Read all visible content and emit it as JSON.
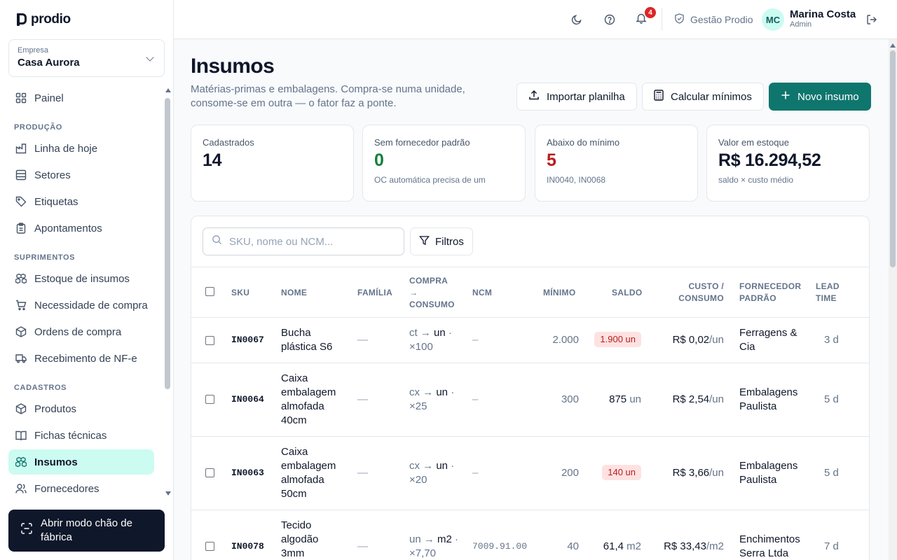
{
  "app": {
    "logo_text": "prodio"
  },
  "company": {
    "label": "Empresa",
    "value": "Casa Aurora"
  },
  "sidebar": {
    "items": [
      {
        "label": "Painel",
        "icon": "layout-grid-icon"
      },
      {
        "label": "Linha de hoje",
        "icon": "factory-icon"
      },
      {
        "label": "Setores",
        "icon": "rows-icon"
      },
      {
        "label": "Etiquetas",
        "icon": "tag-icon"
      },
      {
        "label": "Apontamentos",
        "icon": "clipboard-icon"
      },
      {
        "label": "Estoque de insumos",
        "icon": "boxes-icon"
      },
      {
        "label": "Necessidade de compra",
        "icon": "cart-icon"
      },
      {
        "label": "Ordens de compra",
        "icon": "package-icon"
      },
      {
        "label": "Recebimento de NF-e",
        "icon": "truck-icon"
      },
      {
        "label": "Produtos",
        "icon": "box-icon"
      },
      {
        "label": "Fichas técnicas",
        "icon": "book-icon"
      },
      {
        "label": "Insumos",
        "icon": "boxes-icon"
      },
      {
        "label": "Fornecedores",
        "icon": "users-icon"
      }
    ],
    "sections": [
      "PRODUÇÃO",
      "SUPRIMENTOS",
      "CADASTROS"
    ],
    "floor_button": "Abrir modo chão de fábrica"
  },
  "header": {
    "notifications_count": "4",
    "workspace": "Gestão Prodio",
    "user_initials": "MC",
    "user_name": "Marina Costa",
    "user_role": "Admin"
  },
  "page": {
    "title": "Insumos",
    "subtitle": "Matérias-primas e embalagens. Compra-se numa unidade, consome-se em outra — o fator faz a ponte.",
    "import_button": "Importar planilha",
    "calc_button": "Calcular mínimos",
    "new_button": "Novo insumo"
  },
  "kpis": [
    {
      "label": "Cadastrados",
      "value": "14",
      "note": ""
    },
    {
      "label": "Sem fornecedor padrão",
      "value": "0",
      "note": "OC automática precisa de um",
      "color": "#15803d"
    },
    {
      "label": "Abaixo do mínimo",
      "value": "5",
      "note": "IN0040, IN0068",
      "color": "#b91c1c"
    },
    {
      "label": "Valor em estoque",
      "value": "R$ 16.294,52",
      "note": "saldo × custo médio"
    }
  ],
  "table": {
    "search_placeholder": "SKU, nome ou NCM...",
    "filters_label": "Filtros",
    "headers": {
      "sku": "SKU",
      "nome": "NOME",
      "familia": "FAMÍLIA",
      "compra_1": "COMPRA",
      "compra_2": "→",
      "compra_3": "CONSUMO",
      "ncm": "NCM",
      "minimo": "MÍNIMO",
      "saldo": "SALDO",
      "custo_1": "CUSTO /",
      "custo_2": "CONSUMO",
      "forn_1": "FORNECEDOR",
      "forn_2": "PADRÃO",
      "lead_1": "LEAD",
      "lead_2": "TIME"
    },
    "rows": [
      {
        "sku": "IN0067",
        "nome": [
          "Bucha",
          "plástica S6"
        ],
        "familia": "—",
        "conv_from": "ct",
        "conv_to": "un",
        "conv_factor": "×100",
        "ncm": "–",
        "minimo": "2.000",
        "saldo": "1.900 un",
        "saldo_unit": "",
        "saldo_low": true,
        "custo": "R$ 0,02",
        "custo_unit": "/un",
        "fornecedor": [
          "Ferragens &",
          "Cia"
        ],
        "lead": "3 d"
      },
      {
        "sku": "IN0064",
        "nome": [
          "Caixa",
          "embalagem",
          "almofada",
          "40cm"
        ],
        "familia": "—",
        "conv_from": "cx",
        "conv_to": "un",
        "conv_factor": "×25",
        "ncm": "–",
        "minimo": "300",
        "saldo": "875",
        "saldo_unit": "un",
        "saldo_low": false,
        "custo": "R$ 2,54",
        "custo_unit": "/un",
        "fornecedor": [
          "Embalagens",
          "Paulista"
        ],
        "lead": "5 d"
      },
      {
        "sku": "IN0063",
        "nome": [
          "Caixa",
          "embalagem",
          "almofada",
          "50cm"
        ],
        "familia": "—",
        "conv_from": "cx",
        "conv_to": "un",
        "conv_factor": "×20",
        "ncm": "–",
        "minimo": "200",
        "saldo": "140 un",
        "saldo_unit": "",
        "saldo_low": true,
        "custo": "R$ 3,66",
        "custo_unit": "/un",
        "fornecedor": [
          "Embalagens",
          "Paulista"
        ],
        "lead": "5 d"
      },
      {
        "sku": "IN0078",
        "nome": [
          "Tecido",
          "algodão",
          "3mm"
        ],
        "familia": "—",
        "conv_from": "un",
        "conv_to": "m2",
        "conv_factor": "×7,70",
        "ncm": "7009.91.00",
        "minimo": "40",
        "saldo": "61,4",
        "saldo_unit": "m2",
        "saldo_low": false,
        "custo": "R$ 33,43",
        "custo_unit": "/m2",
        "fornecedor": [
          "Enchimentos",
          "Serra Ltda"
        ],
        "lead": "7 d"
      }
    ]
  },
  "colors": {
    "accent": "#0f766e",
    "active_bg": "#ccfbf1",
    "danger": "#b91c1c",
    "danger_bg": "#fee2e2"
  }
}
